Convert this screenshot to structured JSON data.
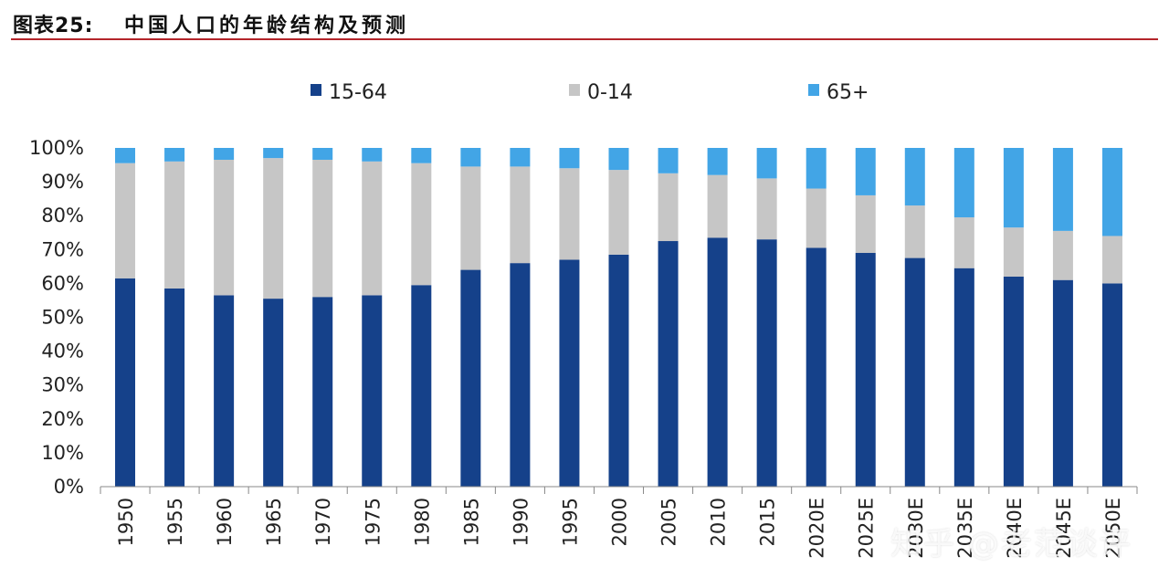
{
  "figure": {
    "label": "图表25:",
    "title": "中国人口的年龄结构及预测"
  },
  "watermark": "知乎 @老范谈评",
  "colors": {
    "accent_rule": "#b4252b"
  },
  "chart_data": {
    "type": "bar",
    "stacked": true,
    "normalized": true,
    "title": "",
    "xlabel": "",
    "ylabel": "",
    "ylim": [
      0,
      100
    ],
    "yticks": [
      "0%",
      "10%",
      "20%",
      "30%",
      "40%",
      "50%",
      "60%",
      "70%",
      "80%",
      "90%",
      "100%"
    ],
    "grid": false,
    "legend_position": "top",
    "x_tick_rotation": "vertical",
    "categories": [
      "1950",
      "1955",
      "1960",
      "1965",
      "1970",
      "1975",
      "1980",
      "1985",
      "1990",
      "1995",
      "2000",
      "2005",
      "2010",
      "2015",
      "2020E",
      "2025E",
      "2030E",
      "2035E",
      "2040E",
      "2045E",
      "2050E"
    ],
    "series": [
      {
        "name": "15-64",
        "color": "#15418a",
        "values": [
          61.5,
          58.5,
          56.5,
          55.5,
          56,
          56.5,
          59.5,
          64,
          66,
          67,
          68.5,
          72.5,
          73.5,
          73,
          70.5,
          69,
          67.5,
          64.5,
          62,
          61,
          60
        ]
      },
      {
        "name": "0-14",
        "color": "#c6c6c6",
        "values": [
          34,
          37.5,
          40,
          41.5,
          40.5,
          39.5,
          36,
          30.5,
          28.5,
          27,
          25,
          20,
          18.5,
          18,
          17.5,
          17,
          15.5,
          15,
          14.5,
          14.5,
          14
        ]
      },
      {
        "name": "65+",
        "color": "#42a5e6",
        "values": [
          4.5,
          4,
          3.5,
          3,
          3.5,
          4,
          4.5,
          5.5,
          5.5,
          6,
          6.5,
          7.5,
          8,
          9,
          12,
          14,
          17,
          20.5,
          23.5,
          24.5,
          26
        ]
      }
    ]
  }
}
